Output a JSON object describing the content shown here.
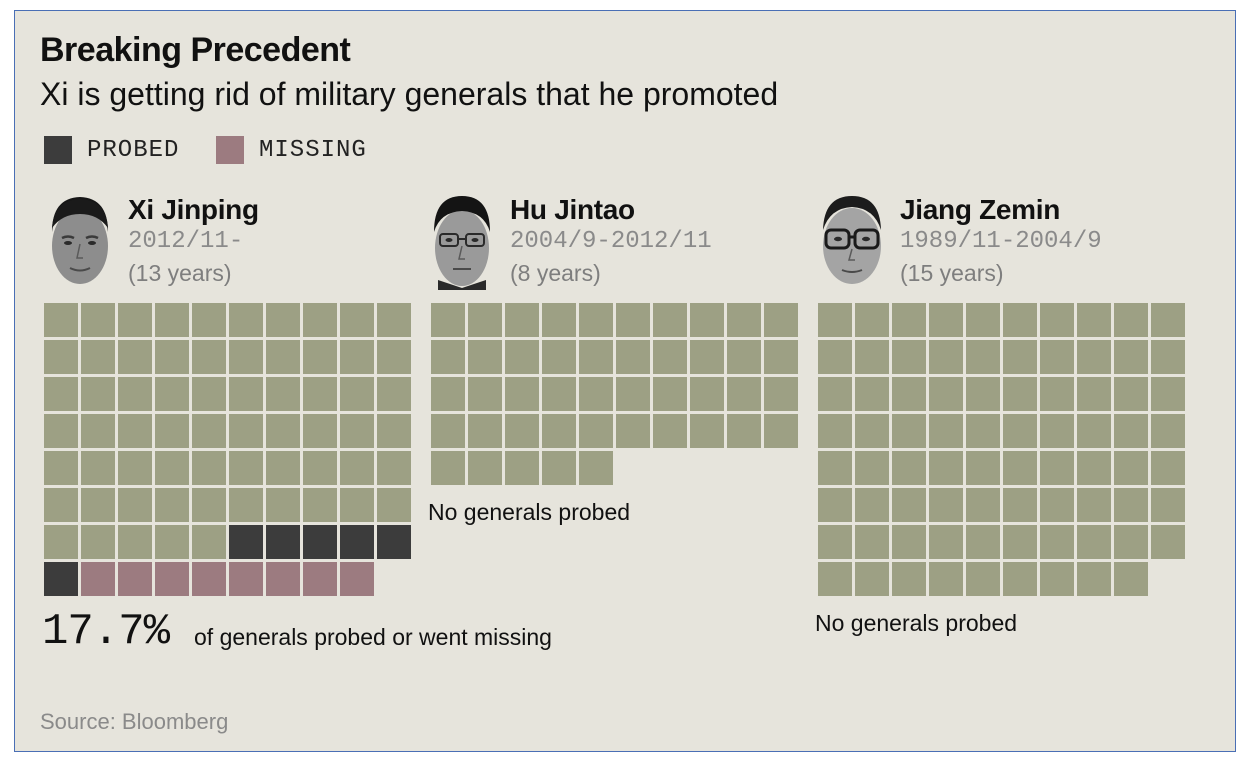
{
  "title": "Breaking Precedent",
  "subtitle": "Xi is getting rid of military generals that he promoted",
  "legend": [
    {
      "label": "PROBED",
      "color": "#3c3c3c"
    },
    {
      "label": "MISSING",
      "color": "#9c7b80"
    }
  ],
  "colors": {
    "normal": "#9da084",
    "probed": "#3c3c3c",
    "missing": "#9c7b80",
    "background": "#e6e4dc"
  },
  "leaders": [
    {
      "name": "Xi Jinping",
      "term": "2012/11-",
      "years": "(13 years)",
      "note": ""
    },
    {
      "name": "Hu Jintao",
      "term": "2004/9-2012/11",
      "years": "(8 years)",
      "note": "No generals probed"
    },
    {
      "name": "Jiang Zemin",
      "term": "1989/11-2004/9",
      "years": "(15 years)",
      "note": "No generals probed"
    }
  ],
  "chart_data": {
    "type": "waffle",
    "columns": 10,
    "groups": [
      {
        "name": "Xi Jinping",
        "total": 79,
        "probed": 6,
        "missing": 8,
        "normal": 65
      },
      {
        "name": "Hu Jintao",
        "total": 45,
        "probed": 0,
        "missing": 0,
        "normal": 45
      },
      {
        "name": "Jiang Zemin",
        "total": 79,
        "probed": 0,
        "missing": 0,
        "normal": 79
      }
    ]
  },
  "stat": {
    "value": "17.7%",
    "text": "of generals probed or went missing"
  },
  "source": "Source: Bloomberg"
}
